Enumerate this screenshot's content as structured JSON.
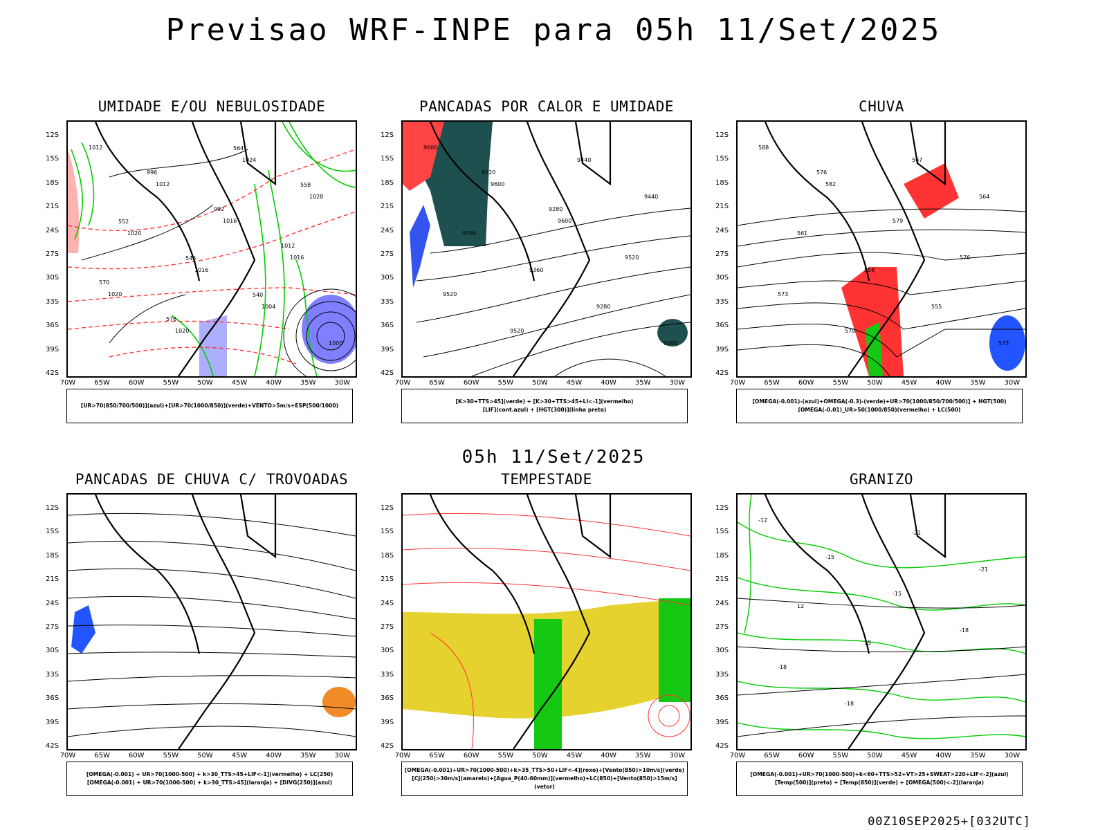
{
  "title": "Previsao WRF-INPE  para 05h 11/Set/2025",
  "subtitle": "05h 11/Set/2025",
  "footer": "00Z10SEP2025+[032UTC]",
  "lat_labels": [
    "12S",
    "15S",
    "18S",
    "21S",
    "24S",
    "27S",
    "30S",
    "33S",
    "36S",
    "39S",
    "42S"
  ],
  "lon_labels": [
    "70W",
    "65W",
    "60W",
    "55W",
    "50W",
    "45W",
    "40W",
    "35W",
    "30W"
  ],
  "panels": [
    {
      "title": "UMIDADE E/OU NEBULOSIDADE",
      "legend": [
        "[UR>70(850/700/500)](azul)+[UR>70(1000/850)](verde)+VENTO>5m/s+ESP(500/1000)"
      ],
      "contour_labels": [
        "1012",
        "1012",
        "1016",
        "1016",
        "1020",
        "1020",
        "1024",
        "1028",
        "1020",
        "1016",
        "1004",
        "1000",
        "996",
        "992",
        "1012",
        "570",
        "576",
        "564",
        "558",
        "552",
        "546",
        "540"
      ]
    },
    {
      "title": "PANCADAS POR CALOR E UMIDADE",
      "legend": [
        "[K>30+TTS>45](verde) + [K>30+TTS>45+LI<-1](vermelho)",
        "[LIF](cont.azul) + [HGT(300)](linha preta)"
      ],
      "contour_labels": [
        "9600",
        "9600",
        "9600",
        "9520",
        "9520",
        "9520",
        "9440",
        "9440",
        "9360",
        "9360",
        "9280",
        "9200",
        "9120",
        "9280"
      ]
    },
    {
      "title": "CHUVA",
      "legend": [
        "[OMEGA(-0.001)-(azul)+OMEGA(-0.3)-(verde)+UR>70(1000/850/700/500)] + HGT(500)",
        "[OMEGA(-0.01)_UR>50(1000/850)(vermelho) + LC(500)"
      ],
      "contour_labels": [
        "588",
        "582",
        "579",
        "576",
        "573",
        "570",
        "567",
        "564",
        "561",
        "558",
        "555",
        "573",
        "576"
      ]
    },
    {
      "title": "PANCADAS DE CHUVA C/ TROVOADAS",
      "legend": [
        "[OMEGA(-0.001) + UR>70(1000-500) + k>30_TTS>45+LIF<-1](vermelho) + LC(250)",
        "[OMEGA(-0.001) + UR>70(1000-500) + k>30_TTS>45](laranja) + [DIVG(250)](azul)"
      ],
      "contour_labels": []
    },
    {
      "title": "TEMPESTADE",
      "legend": [
        "[OMEGA(-0.001)+UR>70(1000-500)+k>35_TTS>50+LIF<-4](roxo)+[Vento(850)>10m/s](verde)",
        "[CJ(250)>30m/s](amarelo)+[Agua_P(40-60mm)](vermelho)+LC(850)+[Vento(850)>15m/s](vetor)"
      ],
      "contour_labels": []
    },
    {
      "title": "GRANIZO",
      "legend": [
        "[OMEGA(-0.001)+UR>70(1000-500)+k<60+TTS>52+VT>25+SWEAT>220+LIF<-2](azul)",
        "[Temp(500)](preto) + [Temp(850)](verde) + [OMEGA(500)<-2](laranja)"
      ],
      "contour_labels": [
        "-12",
        "-15",
        "-15",
        "-18",
        "-18",
        "-18",
        "-21",
        "-21",
        "12",
        "15"
      ]
    }
  ],
  "colors": {
    "humidity_high": "#7f7fff",
    "humidity_low": "#00cc00",
    "red": "#ff3333",
    "dark_cloud": "#1f5050",
    "yellow": "#e6d22e",
    "green_fill": "#14c814",
    "orange": "#f08c28",
    "blue": "#2255ff"
  }
}
